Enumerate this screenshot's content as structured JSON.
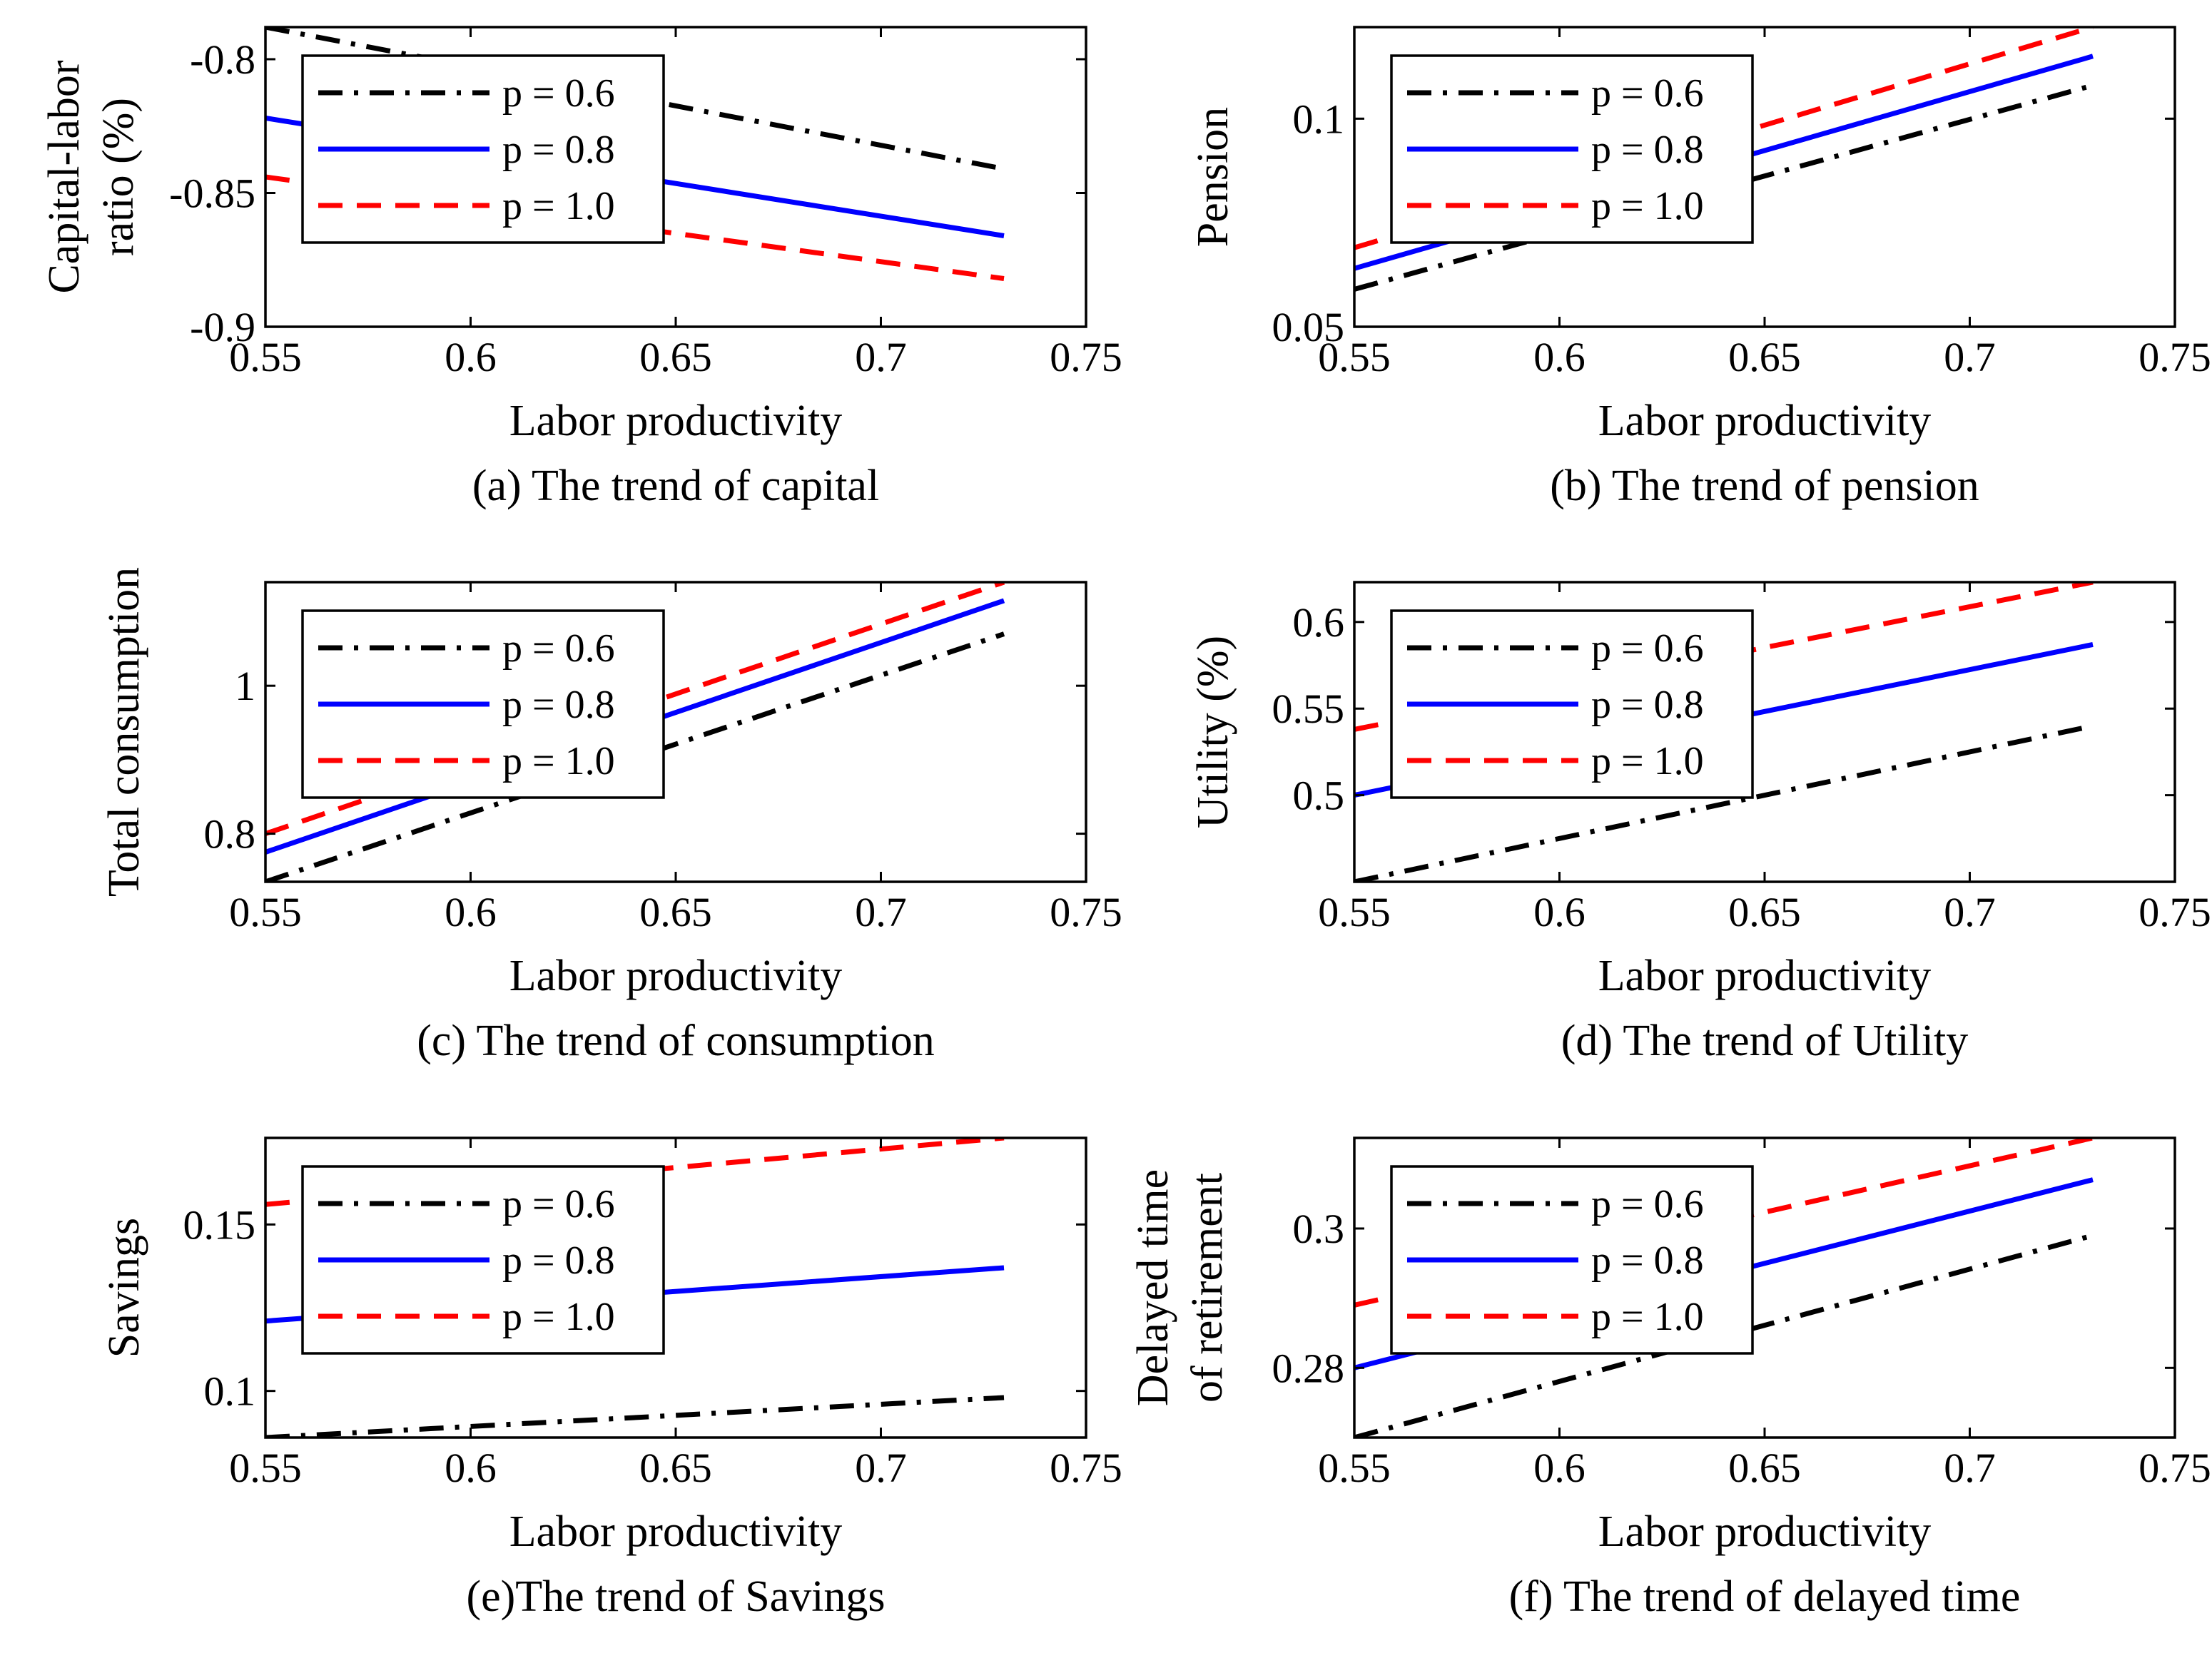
{
  "colors": {
    "p06": "#000000",
    "p08": "#0000ff",
    "p10": "#ff0000"
  },
  "chart_data": [
    {
      "id": "a",
      "type": "line",
      "caption": "(a) The trend of capital",
      "xlabel": "Labor productivity",
      "ylabel_lines": [
        "Capital-labor",
        "ratio (%)"
      ],
      "xlim": [
        0.55,
        0.75
      ],
      "ylim": [
        -0.9,
        -0.788
      ],
      "xticks": [
        0.55,
        0.6,
        0.65,
        0.7,
        0.75
      ],
      "xtick_labels": [
        "0.55",
        "0.6",
        "0.65",
        "0.7",
        "0.75"
      ],
      "yticks": [
        -0.9,
        -0.85,
        -0.8
      ],
      "ytick_labels": [
        "-0.9",
        "-0.85",
        "-0.8"
      ],
      "legend": {
        "position": "top-left",
        "entries": [
          "p = 0.6",
          "p = 0.8",
          "p = 1.0"
        ]
      },
      "series": [
        {
          "name": "p = 0.6",
          "style": "dashdot",
          "color_key": "p06",
          "x": [
            0.55,
            0.73
          ],
          "y": [
            -0.788,
            -0.841
          ]
        },
        {
          "name": "p = 0.8",
          "style": "solid",
          "color_key": "p08",
          "x": [
            0.55,
            0.73
          ],
          "y": [
            -0.822,
            -0.866
          ]
        },
        {
          "name": "p = 1.0",
          "style": "dashed",
          "color_key": "p10",
          "x": [
            0.55,
            0.73
          ],
          "y": [
            -0.844,
            -0.882
          ]
        }
      ]
    },
    {
      "id": "b",
      "type": "line",
      "caption": "(b) The trend of pension",
      "xlabel": "Labor productivity",
      "ylabel_lines": [
        "Pension"
      ],
      "xlim": [
        0.55,
        0.75
      ],
      "ylim": [
        0.05,
        0.122
      ],
      "xticks": [
        0.55,
        0.6,
        0.65,
        0.7,
        0.75
      ],
      "xtick_labels": [
        "0.55",
        "0.6",
        "0.65",
        "0.7",
        "0.75"
      ],
      "yticks": [
        0.05,
        0.1
      ],
      "ytick_labels": [
        "0.05",
        "0.1"
      ],
      "legend": {
        "position": "top-left",
        "entries": [
          "p = 0.6",
          "p = 0.8",
          "p = 1.0"
        ]
      },
      "series": [
        {
          "name": "p = 0.6",
          "style": "dashdot",
          "color_key": "p06",
          "x": [
            0.55,
            0.73
          ],
          "y": [
            0.059,
            0.108
          ]
        },
        {
          "name": "p = 0.8",
          "style": "solid",
          "color_key": "p08",
          "x": [
            0.55,
            0.73
          ],
          "y": [
            0.064,
            0.115
          ]
        },
        {
          "name": "p = 1.0",
          "style": "dashed",
          "color_key": "p10",
          "x": [
            0.55,
            0.73
          ],
          "y": [
            0.069,
            0.122
          ]
        }
      ]
    },
    {
      "id": "c",
      "type": "line",
      "caption": "(c) The trend of consumption",
      "xlabel": "Labor productivity",
      "ylabel_lines": [
        "Total consumption"
      ],
      "xlim": [
        0.55,
        0.75
      ],
      "ylim": [
        0.735,
        1.14
      ],
      "xticks": [
        0.55,
        0.6,
        0.65,
        0.7,
        0.75
      ],
      "xtick_labels": [
        "0.55",
        "0.6",
        "0.65",
        "0.7",
        "0.75"
      ],
      "yticks": [
        0.8,
        1.0
      ],
      "ytick_labels": [
        "0.8",
        "1"
      ],
      "legend": {
        "position": "top-left",
        "entries": [
          "p = 0.6",
          "p = 0.8",
          "p = 1.0"
        ]
      },
      "series": [
        {
          "name": "p = 0.6",
          "style": "dashdot",
          "color_key": "p06",
          "x": [
            0.55,
            0.73
          ],
          "y": [
            0.735,
            1.07
          ]
        },
        {
          "name": "p = 0.8",
          "style": "solid",
          "color_key": "p08",
          "x": [
            0.55,
            0.73
          ],
          "y": [
            0.775,
            1.115
          ]
        },
        {
          "name": "p = 1.0",
          "style": "dashed",
          "color_key": "p10",
          "x": [
            0.55,
            0.73
          ],
          "y": [
            0.8,
            1.14
          ]
        }
      ]
    },
    {
      "id": "d",
      "type": "line",
      "caption": "(d) The trend of Utility",
      "xlabel": "Labor productivity",
      "ylabel_lines": [
        "Utility (%)"
      ],
      "xlim": [
        0.55,
        0.75
      ],
      "ylim": [
        0.45,
        0.623
      ],
      "xticks": [
        0.55,
        0.6,
        0.65,
        0.7,
        0.75
      ],
      "xtick_labels": [
        "0.55",
        "0.6",
        "0.65",
        "0.7",
        "0.75"
      ],
      "yticks": [
        0.5,
        0.55,
        0.6
      ],
      "ytick_labels": [
        "0.5",
        "0.55",
        "0.6"
      ],
      "legend": {
        "position": "top-left",
        "entries": [
          "p = 0.6",
          "p = 0.8",
          "p = 1.0"
        ]
      },
      "series": [
        {
          "name": "p = 0.6",
          "style": "dashdot",
          "color_key": "p06",
          "x": [
            0.55,
            0.73
          ],
          "y": [
            0.45,
            0.54
          ]
        },
        {
          "name": "p = 0.8",
          "style": "solid",
          "color_key": "p08",
          "x": [
            0.55,
            0.73
          ],
          "y": [
            0.5,
            0.587
          ]
        },
        {
          "name": "p = 1.0",
          "style": "dashed",
          "color_key": "p10",
          "x": [
            0.55,
            0.73
          ],
          "y": [
            0.538,
            0.623
          ]
        }
      ]
    },
    {
      "id": "e",
      "type": "line",
      "caption": "(e)The trend of Savings",
      "xlabel": "Labor productivity",
      "ylabel_lines": [
        "Savings"
      ],
      "xlim": [
        0.55,
        0.75
      ],
      "ylim": [
        0.086,
        0.176
      ],
      "xticks": [
        0.55,
        0.6,
        0.65,
        0.7,
        0.75
      ],
      "xtick_labels": [
        "0.55",
        "0.6",
        "0.65",
        "0.7",
        "0.75"
      ],
      "yticks": [
        0.1,
        0.15
      ],
      "ytick_labels": [
        "0.1",
        "0.15"
      ],
      "legend": {
        "position": "top-left",
        "entries": [
          "p = 0.6",
          "p = 0.8",
          "p = 1.0"
        ]
      },
      "series": [
        {
          "name": "p = 0.6",
          "style": "dashdot",
          "color_key": "p06",
          "x": [
            0.55,
            0.73
          ],
          "y": [
            0.086,
            0.098
          ]
        },
        {
          "name": "p = 0.8",
          "style": "solid",
          "color_key": "p08",
          "x": [
            0.55,
            0.73
          ],
          "y": [
            0.121,
            0.137
          ]
        },
        {
          "name": "p = 1.0",
          "style": "dashed",
          "color_key": "p10",
          "x": [
            0.55,
            0.73
          ],
          "y": [
            0.156,
            0.176
          ]
        }
      ]
    },
    {
      "id": "f",
      "type": "line",
      "caption": "(f) The trend of delayed time",
      "xlabel": "Labor productivity",
      "ylabel_lines": [
        "Delayed time",
        "of retirement"
      ],
      "xlim": [
        0.55,
        0.75
      ],
      "ylim": [
        0.27,
        0.313
      ],
      "xticks": [
        0.55,
        0.6,
        0.65,
        0.7,
        0.75
      ],
      "xtick_labels": [
        "0.55",
        "0.6",
        "0.65",
        "0.7",
        "0.75"
      ],
      "yticks": [
        0.28,
        0.3
      ],
      "ytick_labels": [
        "0.28",
        "0.3"
      ],
      "legend": {
        "position": "top-left",
        "entries": [
          "p = 0.6",
          "p = 0.8",
          "p = 1.0"
        ]
      },
      "series": [
        {
          "name": "p = 0.6",
          "style": "dashdot",
          "color_key": "p06",
          "x": [
            0.55,
            0.73
          ],
          "y": [
            0.27,
            0.299
          ]
        },
        {
          "name": "p = 0.8",
          "style": "solid",
          "color_key": "p08",
          "x": [
            0.55,
            0.73
          ],
          "y": [
            0.28,
            0.307
          ]
        },
        {
          "name": "p = 1.0",
          "style": "dashed",
          "color_key": "p10",
          "x": [
            0.55,
            0.73
          ],
          "y": [
            0.289,
            0.313
          ]
        }
      ]
    }
  ]
}
